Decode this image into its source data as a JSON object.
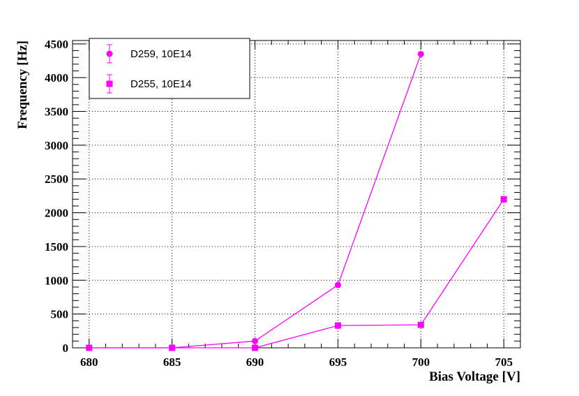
{
  "chart_data": {
    "type": "line",
    "title": "",
    "xlabel": "Bias Voltage [V]",
    "ylabel": "Frequency [Hz]",
    "xlim": [
      679,
      706
    ],
    "ylim": [
      0,
      4550
    ],
    "x_ticks": [
      "680",
      "685",
      "690",
      "695",
      "700",
      "705"
    ],
    "y_ticks": [
      "0",
      "500",
      "1000",
      "1500",
      "2000",
      "2500",
      "3000",
      "3500",
      "4000",
      "4500"
    ],
    "grid": true,
    "legend_position": "top-left",
    "series": [
      {
        "name": "D259, 10E14",
        "marker": "circle",
        "color": "#ff00ff",
        "x": [
          680,
          685,
          690,
          695,
          700
        ],
        "y": [
          0,
          0,
          100,
          930,
          4350
        ]
      },
      {
        "name": "D255, 10E14",
        "marker": "square",
        "color": "#ff00ff",
        "x": [
          680,
          685,
          690,
          695,
          700,
          705
        ],
        "y": [
          0,
          0,
          0,
          330,
          340,
          2200
        ]
      }
    ]
  }
}
